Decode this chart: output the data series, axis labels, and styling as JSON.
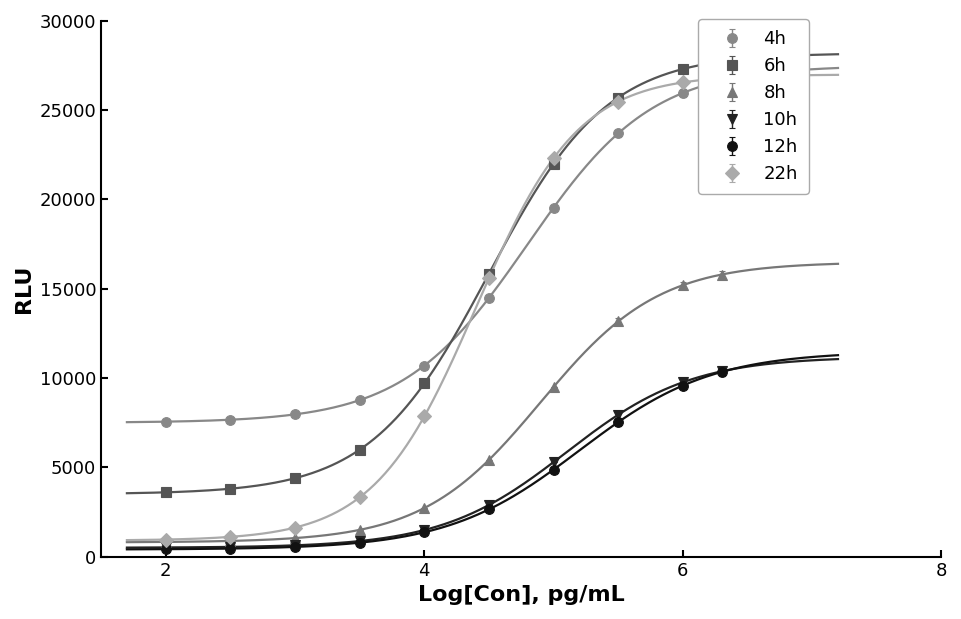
{
  "title": "",
  "xlabel": "Log[Con], pg/mL",
  "ylabel": "RLU",
  "xlim": [
    1.5,
    8
  ],
  "ylim": [
    0,
    30000
  ],
  "yticks": [
    0,
    5000,
    10000,
    15000,
    20000,
    25000,
    30000
  ],
  "xticks": [
    2,
    4,
    6,
    8
  ],
  "series": [
    {
      "label": "4h",
      "color": "#888888",
      "marker": "o",
      "marker_size": 7,
      "bottom": 7500,
      "top": 27500,
      "ec50": 4.8,
      "hill": 0.9
    },
    {
      "label": "6h",
      "color": "#555555",
      "marker": "s",
      "marker_size": 7,
      "bottom": 3500,
      "top": 28200,
      "ec50": 4.5,
      "hill": 0.95
    },
    {
      "label": "8h",
      "color": "#777777",
      "marker": "^",
      "marker_size": 7,
      "bottom": 800,
      "top": 16500,
      "ec50": 4.9,
      "hill": 0.95
    },
    {
      "label": "10h",
      "color": "#222222",
      "marker": "v",
      "marker_size": 7,
      "bottom": 500,
      "top": 11200,
      "ec50": 5.1,
      "hill": 0.9
    },
    {
      "label": "12h",
      "color": "#111111",
      "marker": "o",
      "marker_size": 7,
      "bottom": 400,
      "top": 11500,
      "ec50": 5.2,
      "hill": 0.85
    },
    {
      "label": "22h",
      "color": "#aaaaaa",
      "marker": "D",
      "marker_size": 7,
      "bottom": 900,
      "top": 27000,
      "ec50": 4.4,
      "hill": 1.1
    }
  ],
  "x_points": [
    2.0,
    2.5,
    3.0,
    3.5,
    4.0,
    4.5,
    5.0,
    5.5,
    6.0,
    6.3
  ],
  "background_color": "#ffffff",
  "legend_fontsize": 13,
  "axis_fontsize": 16,
  "tick_fontsize": 13
}
